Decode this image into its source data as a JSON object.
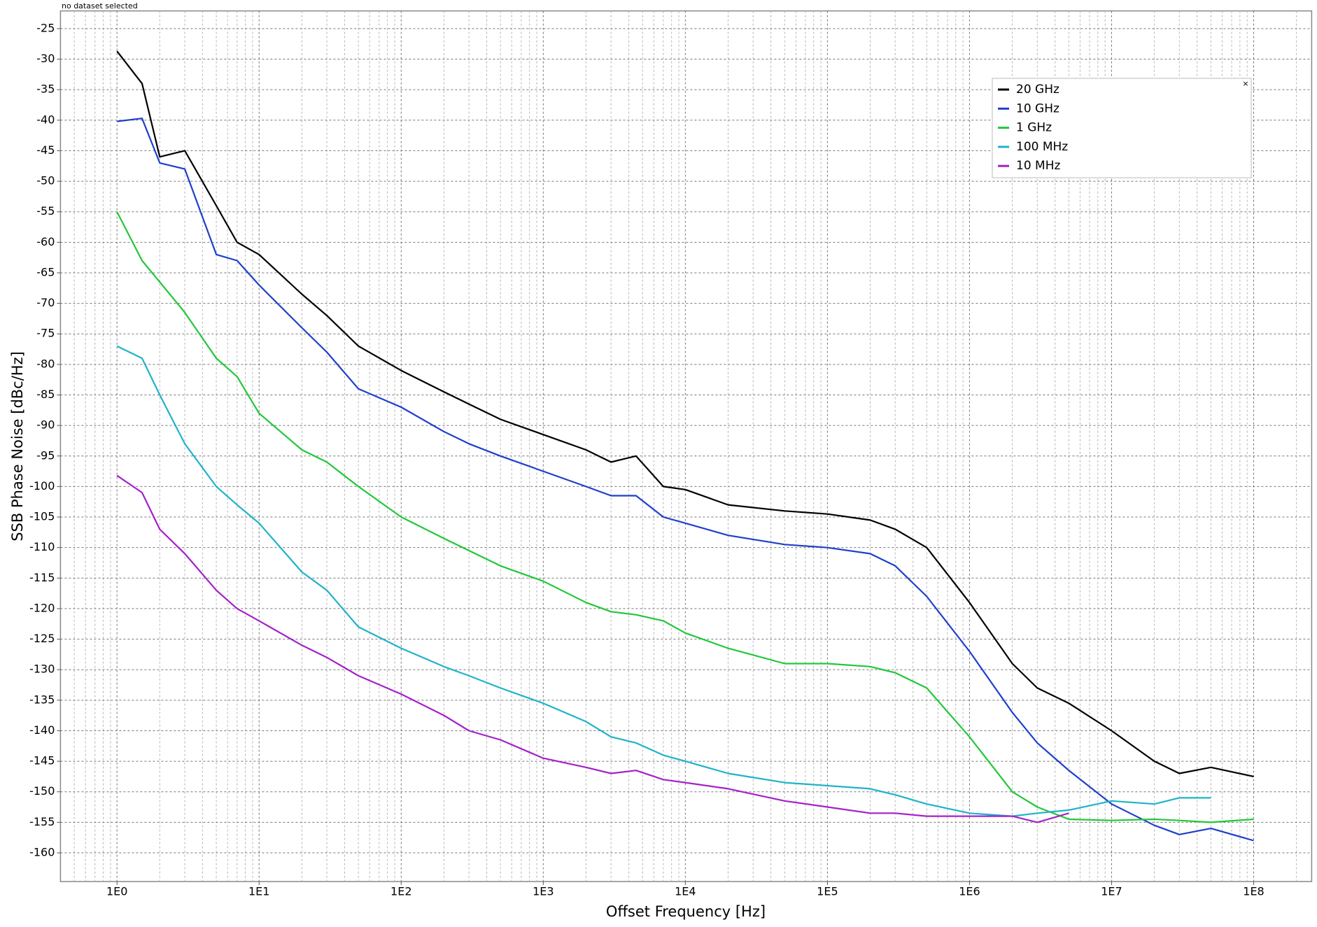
{
  "status_text": "no dataset selected",
  "legend_close": "×",
  "chart_data": {
    "type": "line",
    "xlabel": "Offset Frequency [Hz]",
    "ylabel": "SSB Phase Noise [dBc/Hz]",
    "xscale": "log",
    "grid": true,
    "legend": "upper right",
    "xlim": [
      0.4,
      256000000
    ],
    "ylim": [
      -164.7,
      -22.1
    ],
    "xticks": [
      {
        "value": 1,
        "label": "1E0"
      },
      {
        "value": 10,
        "label": "1E1"
      },
      {
        "value": 100,
        "label": "1E2"
      },
      {
        "value": 1000,
        "label": "1E3"
      },
      {
        "value": 10000,
        "label": "1E4"
      },
      {
        "value": 100000,
        "label": "1E5"
      },
      {
        "value": 1000000,
        "label": "1E6"
      },
      {
        "value": 10000000,
        "label": "1E7"
      },
      {
        "value": 100000000,
        "label": "1E8"
      }
    ],
    "xminorticks": [
      0.5,
      0.6,
      0.7,
      0.8,
      0.9,
      2,
      3,
      4,
      5,
      6,
      7,
      8,
      9,
      20,
      30,
      40,
      50,
      60,
      70,
      80,
      90,
      200,
      300,
      400,
      500,
      600,
      700,
      800,
      900,
      2000,
      3000,
      4000,
      5000,
      6000,
      7000,
      8000,
      9000,
      20000,
      30000,
      40000,
      50000,
      60000,
      70000,
      80000,
      90000,
      200000,
      300000,
      400000,
      500000,
      600000,
      700000,
      800000,
      900000,
      2000000,
      3000000,
      4000000,
      5000000,
      6000000,
      7000000,
      8000000,
      9000000,
      20000000,
      30000000,
      40000000,
      50000000,
      60000000,
      70000000,
      80000000,
      90000000,
      200000000
    ],
    "yticks": [
      -25,
      -30,
      -35,
      -40,
      -45,
      -50,
      -55,
      -60,
      -65,
      -70,
      -75,
      -80,
      -85,
      -90,
      -95,
      -100,
      -105,
      -110,
      -115,
      -120,
      -125,
      -130,
      -135,
      -140,
      -145,
      -150,
      -155,
      -160
    ],
    "x": [
      1,
      1.5,
      2,
      3,
      5,
      7,
      10,
      20,
      30,
      50,
      100,
      200,
      300,
      500,
      1000,
      2000,
      3000,
      4500,
      7000,
      10000,
      20000,
      50000,
      100000,
      200000,
      300000,
      500000,
      1000000,
      2000000,
      3000000,
      5000000,
      10000000,
      20000000,
      30000000,
      50000000,
      100000000
    ],
    "series": [
      {
        "name": "20 GHz",
        "color": "#000000",
        "values": [
          -28.7,
          -34,
          -46,
          -45,
          -54,
          -60,
          -62,
          -68.5,
          -72,
          -77,
          -81,
          -84.5,
          -86.5,
          -89,
          -91.5,
          -94,
          -96,
          -95,
          -100,
          -100.5,
          -103,
          -104,
          -104.5,
          -105.5,
          -107,
          -110,
          -119,
          -129,
          -133,
          -135.5,
          -140,
          -145,
          -147,
          -146,
          -147.5
        ]
      },
      {
        "name": "10 GHz",
        "color": "#1f3fcc",
        "values": [
          -40.2,
          -39.7,
          -47,
          -48,
          -62,
          -63,
          -67,
          -74,
          -78,
          -84,
          -87,
          -91,
          -93,
          -95,
          -97.5,
          -100,
          -101.5,
          -101.5,
          -105,
          -106,
          -108,
          -109.5,
          -110,
          -111,
          -113,
          -118,
          -127,
          -137,
          -142,
          -146.5,
          -152,
          -155.5,
          -157,
          -156,
          -158
        ]
      },
      {
        "name": "1 GHz",
        "color": "#22c73a",
        "values": [
          -55,
          -63,
          -66.5,
          -71.5,
          -79,
          -82,
          -88,
          -94,
          -96,
          -100,
          -105,
          -108.5,
          -110.5,
          -113,
          -115.5,
          -119,
          -120.5,
          -121,
          -122,
          -124,
          -126.5,
          -129,
          -129,
          -129.5,
          -130.5,
          -133,
          -141,
          -150,
          -152.5,
          -154.5,
          -154.7,
          -154.5,
          -154.7,
          -155,
          -154.5
        ]
      },
      {
        "name": "100 MHz",
        "color": "#1fb3c9",
        "values": [
          -77,
          -79,
          -85,
          -93,
          -100,
          -103,
          -106,
          -114,
          -117,
          -123,
          -126.5,
          -129.5,
          -131,
          -133,
          -135.5,
          -138.5,
          -141,
          -142,
          -144,
          -145,
          -147,
          -148.5,
          -149,
          -149.5,
          -150.5,
          -152,
          -153.5,
          -154,
          -153.5,
          -153,
          -151.5,
          -152,
          -151,
          -151,
          null
        ]
      },
      {
        "name": "10 MHz",
        "color": "#a521c9",
        "values": [
          -98.2,
          -101,
          -107,
          -111,
          -117,
          -120,
          -122,
          -126,
          -128,
          -131,
          -134,
          -137.5,
          -140,
          -141.5,
          -144.5,
          -146,
          -147,
          -146.5,
          -148,
          -148.5,
          -149.5,
          -151.5,
          -152.5,
          -153.5,
          -153.5,
          -154,
          -154,
          -154,
          -155,
          -153.5,
          null,
          null,
          null,
          null,
          null
        ]
      }
    ]
  }
}
